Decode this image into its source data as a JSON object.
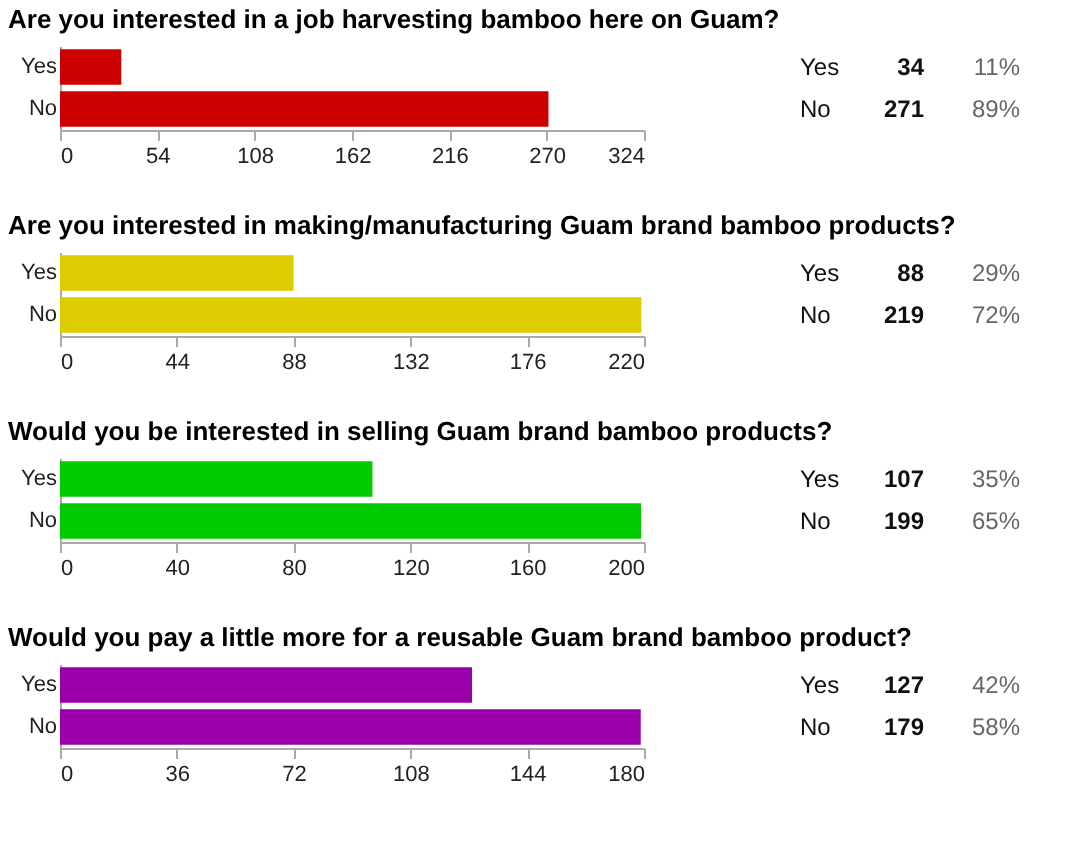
{
  "chart_data": [
    {
      "type": "bar",
      "orientation": "horizontal",
      "title": "Are you interested in a job harvesting bamboo here on Guam?",
      "categories": [
        "Yes",
        "No"
      ],
      "values": [
        34,
        271
      ],
      "color": "#cc0000",
      "xlim": [
        0,
        324
      ],
      "xticks": [
        0,
        54,
        108,
        162,
        216,
        270,
        324
      ],
      "grid": false,
      "data_labels": true,
      "annotations": [
        "11%",
        "89%"
      ]
    },
    {
      "type": "bar",
      "orientation": "horizontal",
      "title": "Are you interested in making/manufacturing Guam brand bamboo products?",
      "categories": [
        "Yes",
        "No"
      ],
      "values": [
        88,
        219
      ],
      "color": "#ddcc00",
      "xlim": [
        0,
        220
      ],
      "xticks": [
        0,
        44,
        88,
        132,
        176,
        220
      ],
      "grid": false,
      "data_labels": true,
      "annotations": [
        "29%",
        "72%"
      ]
    },
    {
      "type": "bar",
      "orientation": "horizontal",
      "title": "Would you be interested in selling Guam brand bamboo products?",
      "categories": [
        "Yes",
        "No"
      ],
      "values": [
        107,
        199
      ],
      "color": "#00cc00",
      "xlim": [
        0,
        200
      ],
      "xticks": [
        0,
        40,
        80,
        120,
        160,
        200
      ],
      "grid": false,
      "data_labels": true,
      "annotations": [
        "35%",
        "65%"
      ]
    },
    {
      "type": "bar",
      "orientation": "horizontal",
      "title": "Would you pay a little more for a reusable Guam brand bamboo product?",
      "categories": [
        "Yes",
        "No"
      ],
      "values": [
        127,
        179
      ],
      "color": "#9900aa",
      "xlim": [
        0,
        180
      ],
      "xticks": [
        0,
        36,
        72,
        108,
        144,
        180
      ],
      "grid": false,
      "data_labels": true,
      "annotations": [
        "42%",
        "58%"
      ]
    }
  ]
}
